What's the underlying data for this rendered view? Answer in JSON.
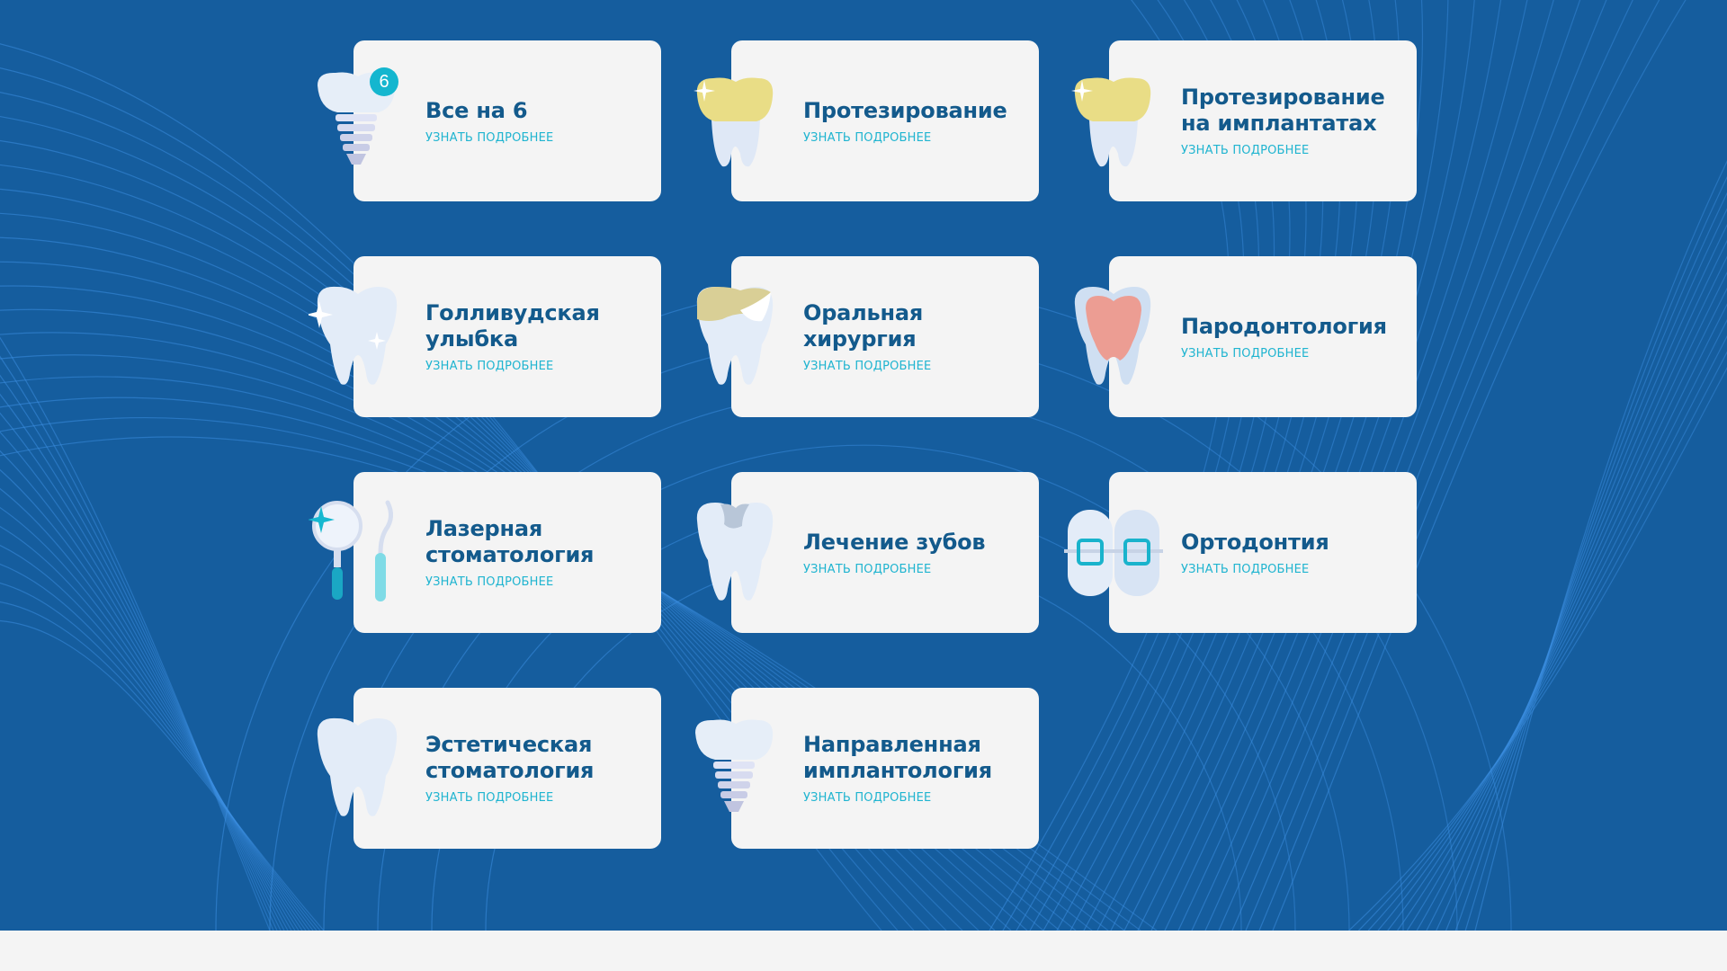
{
  "colors": {
    "background": "#155d9e",
    "card": "#f4f4f4",
    "title": "#135a8c",
    "link": "#1fb4d0",
    "badge": "#14b6cf"
  },
  "services": [
    {
      "title": "Все на 6",
      "link": "УЗНАТЬ ПОДРОБНЕЕ",
      "icon": "implant-icon",
      "badge": "6"
    },
    {
      "title": "Протезирование",
      "link": "УЗНАТЬ ПОДРОБНЕЕ",
      "icon": "crown-tooth-icon"
    },
    {
      "title": "Протезирование на имплантатах",
      "link": "УЗНАТЬ ПОДРОБНЕЕ",
      "icon": "crown-tooth-icon"
    },
    {
      "title": "Голливудская улыбка",
      "link": "УЗНАТЬ ПОДРОБНЕЕ",
      "icon": "sparkling-tooth-icon"
    },
    {
      "title": "Оральная хирургия",
      "link": "УЗНАТЬ ПОДРОБНЕЕ",
      "icon": "veneer-tooth-icon"
    },
    {
      "title": "Пародонтология",
      "link": "УЗНАТЬ ПОДРОБНЕЕ",
      "icon": "gum-tooth-icon"
    },
    {
      "title": "Лазерная стоматология",
      "link": "УЗНАТЬ ПОДРОБНЕЕ",
      "icon": "dental-mirror-icon"
    },
    {
      "title": "Лечение зубов",
      "link": "УЗНАТЬ ПОДРОБНЕЕ",
      "icon": "filling-tooth-icon"
    },
    {
      "title": "Ортодонтия",
      "link": "УЗНАТЬ ПОДРОБНЕЕ",
      "icon": "braces-icon"
    },
    {
      "title": "Эстетическая стоматология",
      "link": "УЗНАТЬ ПОДРОБНЕЕ",
      "icon": "tooth-icon"
    },
    {
      "title": "Направленная имплантология",
      "link": "УЗНАТЬ ПОДРОБНЕЕ",
      "icon": "implant-icon"
    }
  ]
}
